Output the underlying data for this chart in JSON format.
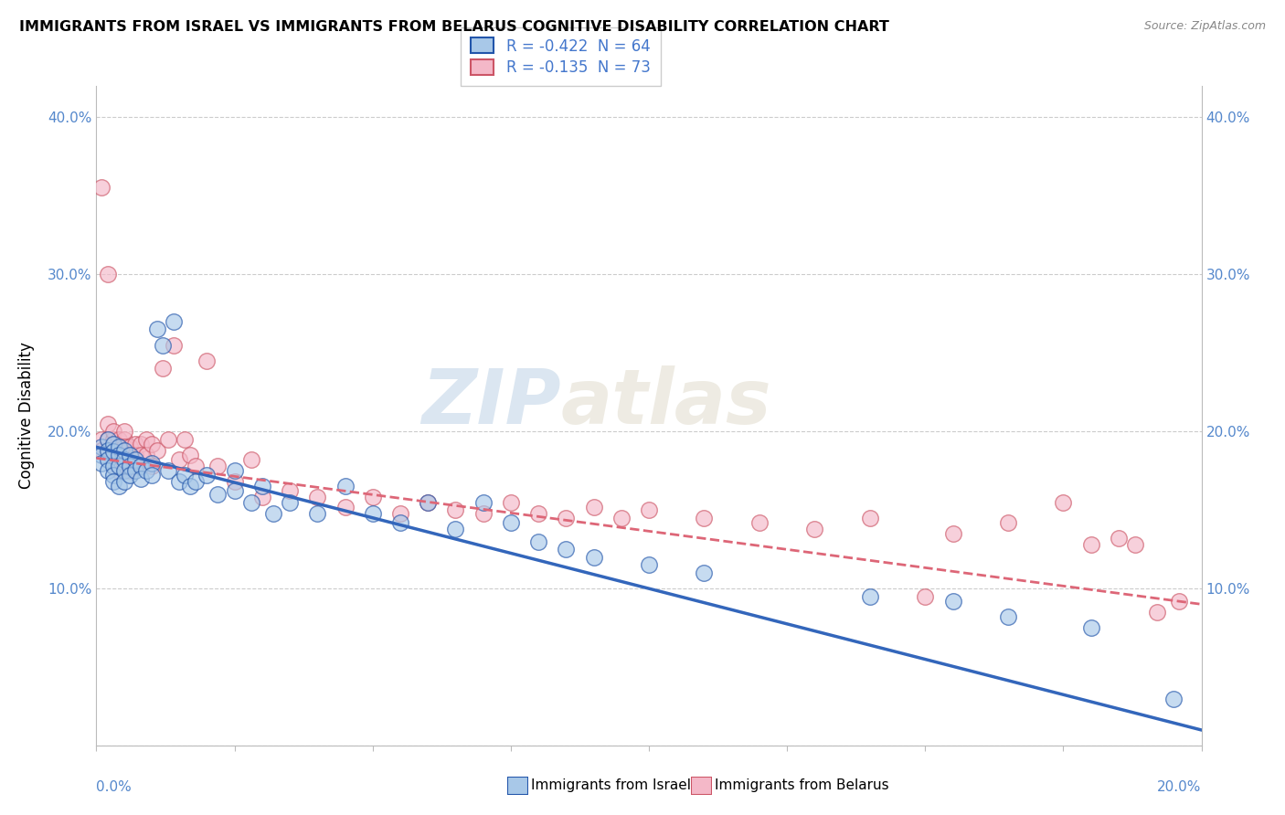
{
  "title": "IMMIGRANTS FROM ISRAEL VS IMMIGRANTS FROM BELARUS COGNITIVE DISABILITY CORRELATION CHART",
  "source": "Source: ZipAtlas.com",
  "ylabel": "Cognitive Disability",
  "xlim": [
    0.0,
    0.2
  ],
  "ylim": [
    0.0,
    0.42
  ],
  "legend_r1": "R = -0.422  N = 64",
  "legend_r2": "R = -0.135  N = 73",
  "color_israel": "#a8c8e8",
  "color_belarus": "#f4b8c8",
  "color_israel_line": "#3366bb",
  "color_belarus_line": "#dd6677",
  "watermark_zip": "ZIP",
  "watermark_atlas": "atlas",
  "israel_line_x0": 0.0,
  "israel_line_y0": 0.19,
  "israel_line_x1": 0.2,
  "israel_line_y1": 0.01,
  "belarus_line_x0": 0.0,
  "belarus_line_y0": 0.183,
  "belarus_line_x1": 0.2,
  "belarus_line_y1": 0.09,
  "israel_x": [
    0.001,
    0.001,
    0.001,
    0.002,
    0.002,
    0.002,
    0.002,
    0.003,
    0.003,
    0.003,
    0.003,
    0.003,
    0.004,
    0.004,
    0.004,
    0.004,
    0.005,
    0.005,
    0.005,
    0.005,
    0.006,
    0.006,
    0.006,
    0.007,
    0.007,
    0.008,
    0.008,
    0.009,
    0.01,
    0.01,
    0.011,
    0.012,
    0.013,
    0.014,
    0.015,
    0.016,
    0.017,
    0.018,
    0.02,
    0.022,
    0.025,
    0.025,
    0.028,
    0.03,
    0.032,
    0.035,
    0.04,
    0.045,
    0.05,
    0.055,
    0.06,
    0.065,
    0.07,
    0.075,
    0.08,
    0.085,
    0.09,
    0.1,
    0.11,
    0.14,
    0.155,
    0.165,
    0.18,
    0.195
  ],
  "israel_y": [
    0.19,
    0.185,
    0.18,
    0.195,
    0.188,
    0.182,
    0.175,
    0.192,
    0.187,
    0.178,
    0.172,
    0.168,
    0.19,
    0.185,
    0.178,
    0.165,
    0.188,
    0.182,
    0.175,
    0.168,
    0.185,
    0.178,
    0.172,
    0.182,
    0.175,
    0.178,
    0.17,
    0.175,
    0.18,
    0.172,
    0.265,
    0.255,
    0.175,
    0.27,
    0.168,
    0.172,
    0.165,
    0.168,
    0.172,
    0.16,
    0.175,
    0.162,
    0.155,
    0.165,
    0.148,
    0.155,
    0.148,
    0.165,
    0.148,
    0.142,
    0.155,
    0.138,
    0.155,
    0.142,
    0.13,
    0.125,
    0.12,
    0.115,
    0.11,
    0.095,
    0.092,
    0.082,
    0.075,
    0.03
  ],
  "belarus_x": [
    0.001,
    0.001,
    0.001,
    0.002,
    0.002,
    0.002,
    0.002,
    0.003,
    0.003,
    0.003,
    0.003,
    0.003,
    0.004,
    0.004,
    0.004,
    0.004,
    0.005,
    0.005,
    0.005,
    0.005,
    0.005,
    0.006,
    0.006,
    0.006,
    0.007,
    0.007,
    0.007,
    0.008,
    0.008,
    0.009,
    0.009,
    0.01,
    0.01,
    0.011,
    0.012,
    0.013,
    0.014,
    0.015,
    0.016,
    0.017,
    0.018,
    0.02,
    0.022,
    0.025,
    0.028,
    0.03,
    0.035,
    0.04,
    0.045,
    0.05,
    0.055,
    0.06,
    0.065,
    0.07,
    0.075,
    0.08,
    0.085,
    0.09,
    0.095,
    0.1,
    0.11,
    0.12,
    0.13,
    0.14,
    0.15,
    0.155,
    0.165,
    0.175,
    0.18,
    0.185,
    0.188,
    0.192,
    0.196
  ],
  "belarus_y": [
    0.355,
    0.195,
    0.188,
    0.3,
    0.205,
    0.195,
    0.188,
    0.195,
    0.2,
    0.192,
    0.185,
    0.178,
    0.195,
    0.188,
    0.182,
    0.175,
    0.195,
    0.2,
    0.19,
    0.185,
    0.178,
    0.19,
    0.182,
    0.175,
    0.192,
    0.185,
    0.178,
    0.192,
    0.185,
    0.195,
    0.185,
    0.192,
    0.178,
    0.188,
    0.24,
    0.195,
    0.255,
    0.182,
    0.195,
    0.185,
    0.178,
    0.245,
    0.178,
    0.168,
    0.182,
    0.158,
    0.162,
    0.158,
    0.152,
    0.158,
    0.148,
    0.155,
    0.15,
    0.148,
    0.155,
    0.148,
    0.145,
    0.152,
    0.145,
    0.15,
    0.145,
    0.142,
    0.138,
    0.145,
    0.095,
    0.135,
    0.142,
    0.155,
    0.128,
    0.132,
    0.128,
    0.085,
    0.092
  ]
}
